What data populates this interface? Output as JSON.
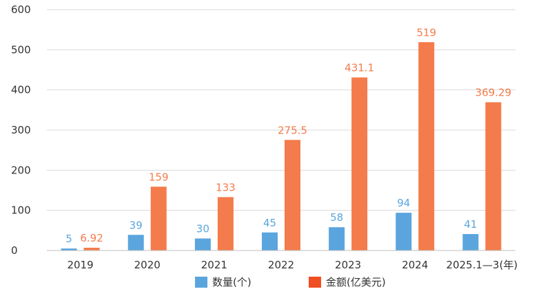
{
  "chart_data": {
    "type": "bar",
    "categories": [
      "2019",
      "2020",
      "2021",
      "2022",
      "2023",
      "2024",
      "2025.1—3(年)"
    ],
    "series": [
      {
        "name": "数量(个)",
        "color": "#5aa5de",
        "values": [
          5,
          39,
          30,
          45,
          58,
          94,
          41
        ],
        "labels": [
          "5",
          "39",
          "30",
          "45",
          "58",
          "94",
          "41"
        ]
      },
      {
        "name": "金额(亿美元)",
        "color": "#f47b4b",
        "values": [
          6.92,
          159,
          133,
          275.5,
          431.1,
          519,
          369.29
        ],
        "labels": [
          "6.92",
          "159",
          "133",
          "275.5",
          "431.1",
          "519",
          "369.29"
        ]
      }
    ],
    "y_ticks": [
      "0",
      "100",
      "200",
      "300",
      "400",
      "500",
      "600"
    ],
    "ylim": [
      0,
      600
    ],
    "grid": true,
    "legend_position": "bottom-center",
    "legend_colors": [
      "#5aa5de",
      "#f04e23"
    ],
    "title": "",
    "xlabel": "",
    "ylabel": ""
  }
}
